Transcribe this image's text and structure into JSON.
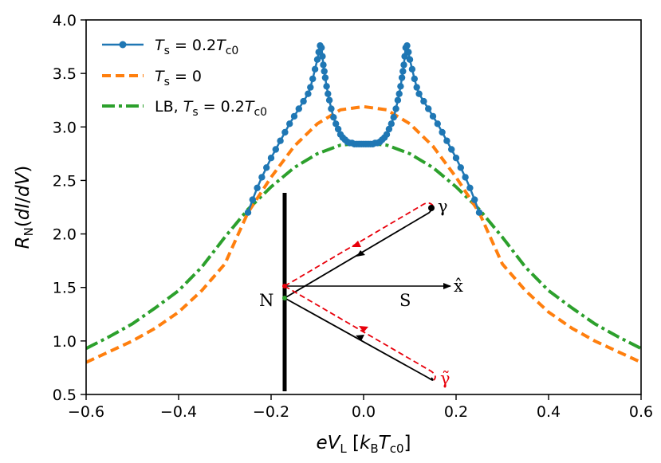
{
  "chart_data": {
    "type": "line",
    "title": "",
    "xlabel": "eV_L [k_B T_c0]",
    "ylabel": "R_N(dI/dV)",
    "xlim": [
      -0.6,
      0.6
    ],
    "ylim": [
      0.5,
      4.0
    ],
    "grid": false,
    "legend_position": "top-left",
    "x_ticks": [
      -0.6,
      -0.4,
      -0.2,
      0.0,
      0.2,
      0.4,
      0.6
    ],
    "x_tick_labels": [
      "−0.6",
      "−0.4",
      "−0.2",
      "0.0",
      "0.2",
      "0.4",
      "0.6"
    ],
    "y_ticks": [
      0.5,
      1.0,
      1.5,
      2.0,
      2.5,
      3.0,
      3.5,
      4.0
    ],
    "y_tick_labels": [
      "0.5",
      "1.0",
      "1.5",
      "2.0",
      "2.5",
      "3.0",
      "3.5",
      "4.0"
    ],
    "series": [
      {
        "name": "T_s = 0.2 T_c0",
        "color": "#1f77b4",
        "style": "solid-markers",
        "x": [
          -0.25,
          -0.24,
          -0.23,
          -0.22,
          -0.21,
          -0.2,
          -0.19,
          -0.18,
          -0.17,
          -0.16,
          -0.15,
          -0.14,
          -0.13,
          -0.12,
          -0.115,
          -0.11,
          -0.105,
          -0.1,
          -0.097,
          -0.094,
          -0.091,
          -0.089,
          -0.087,
          -0.085,
          -0.083,
          -0.08,
          -0.077,
          -0.074,
          -0.07,
          -0.065,
          -0.06,
          -0.055,
          -0.05,
          -0.045,
          -0.04,
          -0.035,
          -0.03,
          -0.025,
          -0.02,
          -0.015,
          -0.01,
          -0.005,
          0.0,
          0.005,
          0.01,
          0.015,
          0.02,
          0.025,
          0.03,
          0.035,
          0.04,
          0.045,
          0.05,
          0.055,
          0.06,
          0.065,
          0.07,
          0.074,
          0.077,
          0.08,
          0.083,
          0.085,
          0.087,
          0.089,
          0.091,
          0.094,
          0.097,
          0.1,
          0.105,
          0.11,
          0.115,
          0.12,
          0.13,
          0.14,
          0.15,
          0.16,
          0.17,
          0.18,
          0.19,
          0.2,
          0.21,
          0.22,
          0.23,
          0.24,
          0.25
        ],
        "y": [
          2.2,
          2.32,
          2.43,
          2.53,
          2.62,
          2.71,
          2.79,
          2.87,
          2.95,
          3.03,
          3.1,
          3.17,
          3.24,
          3.31,
          3.37,
          3.45,
          3.54,
          3.63,
          3.7,
          3.76,
          3.74,
          3.66,
          3.58,
          3.52,
          3.46,
          3.38,
          3.31,
          3.25,
          3.17,
          3.09,
          3.03,
          2.98,
          2.93,
          2.9,
          2.88,
          2.86,
          2.85,
          2.85,
          2.84,
          2.84,
          2.84,
          2.84,
          2.84,
          2.84,
          2.84,
          2.84,
          2.84,
          2.85,
          2.85,
          2.86,
          2.88,
          2.9,
          2.93,
          2.98,
          3.03,
          3.09,
          3.17,
          3.25,
          3.31,
          3.38,
          3.46,
          3.52,
          3.58,
          3.66,
          3.74,
          3.76,
          3.7,
          3.63,
          3.54,
          3.45,
          3.37,
          3.31,
          3.24,
          3.17,
          3.1,
          3.03,
          2.95,
          2.87,
          2.79,
          2.71,
          2.62,
          2.53,
          2.43,
          2.32,
          2.2
        ]
      },
      {
        "name": "T_s = 0",
        "color": "#ff7f0e",
        "style": "dashed",
        "x": [
          -0.6,
          -0.55,
          -0.5,
          -0.45,
          -0.4,
          -0.35,
          -0.3,
          -0.25,
          -0.2,
          -0.15,
          -0.1,
          -0.05,
          0.0,
          0.05,
          0.1,
          0.15,
          0.2,
          0.25,
          0.3,
          0.35,
          0.4,
          0.45,
          0.5,
          0.55,
          0.6
        ],
        "y": [
          0.8,
          0.9,
          1.0,
          1.12,
          1.27,
          1.47,
          1.72,
          2.2,
          2.53,
          2.82,
          3.03,
          3.16,
          3.19,
          3.16,
          3.03,
          2.82,
          2.53,
          2.2,
          1.72,
          1.47,
          1.27,
          1.12,
          1.0,
          0.9,
          0.8
        ]
      },
      {
        "name": "LB, T_s = 0.2 T_c0",
        "color": "#2ca02c",
        "style": "dashdot",
        "x": [
          -0.6,
          -0.55,
          -0.5,
          -0.45,
          -0.4,
          -0.35,
          -0.3,
          -0.25,
          -0.2,
          -0.15,
          -0.1,
          -0.05,
          0.0,
          0.05,
          0.1,
          0.15,
          0.2,
          0.25,
          0.3,
          0.35,
          0.4,
          0.45,
          0.5,
          0.55,
          0.6
        ],
        "y": [
          0.93,
          1.04,
          1.16,
          1.31,
          1.47,
          1.69,
          1.97,
          2.23,
          2.44,
          2.62,
          2.75,
          2.83,
          2.85,
          2.83,
          2.75,
          2.62,
          2.44,
          2.23,
          1.97,
          1.69,
          1.47,
          1.31,
          1.16,
          1.04,
          0.93
        ]
      }
    ],
    "legend": [
      {
        "italic_base": "T",
        "subscript": "s",
        "rest": " = 0.2",
        "italic_base2": "T",
        "subscript2": "c0"
      },
      {
        "italic_base": "T",
        "subscript": "s",
        "rest": " = 0",
        "italic_base2": "",
        "subscript2": ""
      },
      {
        "prefix": "LB, ",
        "italic_base": "T",
        "subscript": "s",
        "rest": " = 0.2",
        "italic_base2": "T",
        "subscript2": "c0"
      }
    ],
    "inset": {
      "label_N": "N",
      "label_S": "S",
      "label_x": "x̂",
      "label_gamma": "γ",
      "label_gamma_tilde": "γ̃",
      "label_gamma_color": "#000000",
      "label_gamma_tilde_color": "#e8000b"
    }
  }
}
